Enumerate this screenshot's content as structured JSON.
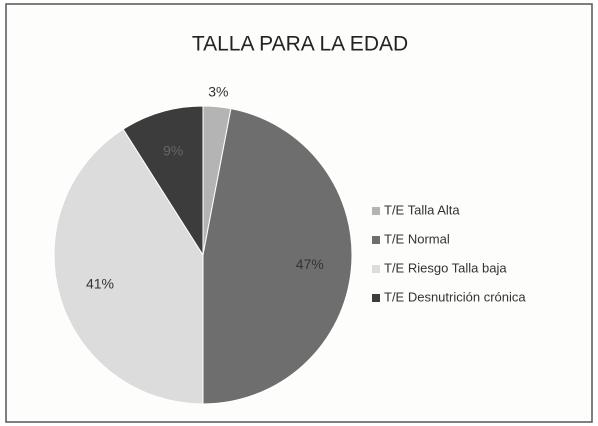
{
  "chart_data": {
    "type": "pie",
    "title": "TALLA PARA LA EDAD",
    "categories": [
      "T/E Talla Alta",
      "T/E Normal",
      "T/E Riesgo Talla baja",
      "T/E Desnutrición crónica"
    ],
    "values": [
      3,
      47,
      41,
      9
    ],
    "value_labels": [
      "3%",
      "47%",
      "41%",
      "9%"
    ],
    "colors": [
      "#b4b4b4",
      "#6e6e6e",
      "#dcdcdc",
      "#3c3c3c"
    ],
    "legend": "right"
  }
}
